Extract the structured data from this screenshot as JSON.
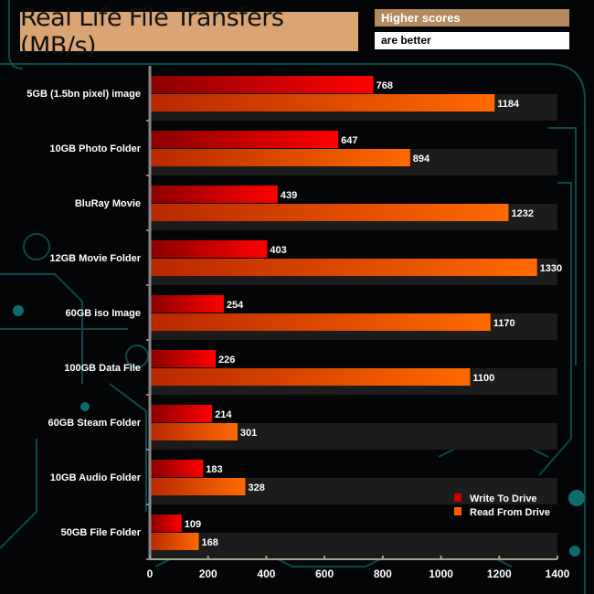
{
  "chart_data": {
    "type": "bar",
    "orientation": "horizontal",
    "title": "Real Life File Transfers (MB/s)",
    "note": [
      "Higher scores",
      "are better"
    ],
    "categories": [
      "5GB (1.5bn pixel) image",
      "10GB Photo Folder",
      "BluRay Movie",
      "12GB Movie Folder",
      "60GB iso Image",
      "100GB Data File",
      "60GB Steam Folder",
      "10GB Audio Folder",
      "50GB File Folder"
    ],
    "series": [
      {
        "name": "Write To  Drive",
        "values": [
          768,
          647,
          439,
          403,
          254,
          226,
          214,
          183,
          109
        ],
        "color": "#e00000"
      },
      {
        "name": "Read From  Drive",
        "values": [
          1184,
          894,
          1232,
          1330,
          1170,
          1100,
          301,
          328,
          168
        ],
        "color": "#ff6000"
      }
    ],
    "xlim": [
      0,
      1400
    ],
    "xticks": [
      "0",
      "200",
      "400",
      "600",
      "800",
      "1000",
      "1200",
      "1400"
    ],
    "legend": "bottom-right",
    "grid": false
  }
}
